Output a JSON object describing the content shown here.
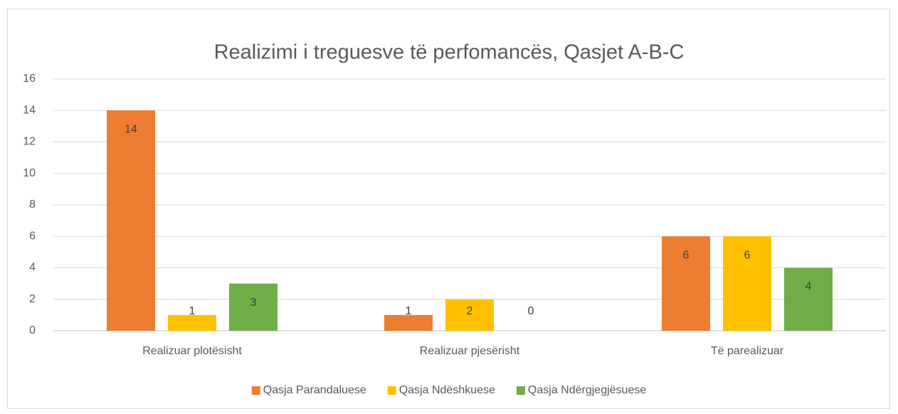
{
  "chart_data": {
    "type": "bar",
    "title": "Realizimi i treguesve të perfomancës, Qasjet A-B-C",
    "categories": [
      "Realizuar plotësisht",
      "Realizuar pjesërisht",
      "Të parealizuar"
    ],
    "series": [
      {
        "name": "Qasja Parandaluese",
        "color": "#ed7d31",
        "values": [
          14,
          1,
          6
        ]
      },
      {
        "name": "Qasja Ndëshkuese",
        "color": "#ffc000",
        "values": [
          1,
          2,
          6
        ]
      },
      {
        "name": "Qasja Ndërgjegjësuese",
        "color": "#70ad47",
        "values": [
          3,
          0,
          4
        ]
      }
    ],
    "ylim": [
      0,
      16
    ],
    "yticks": [
      0,
      2,
      4,
      6,
      8,
      10,
      12,
      14,
      16
    ],
    "grid": true,
    "legend": "bottom"
  }
}
